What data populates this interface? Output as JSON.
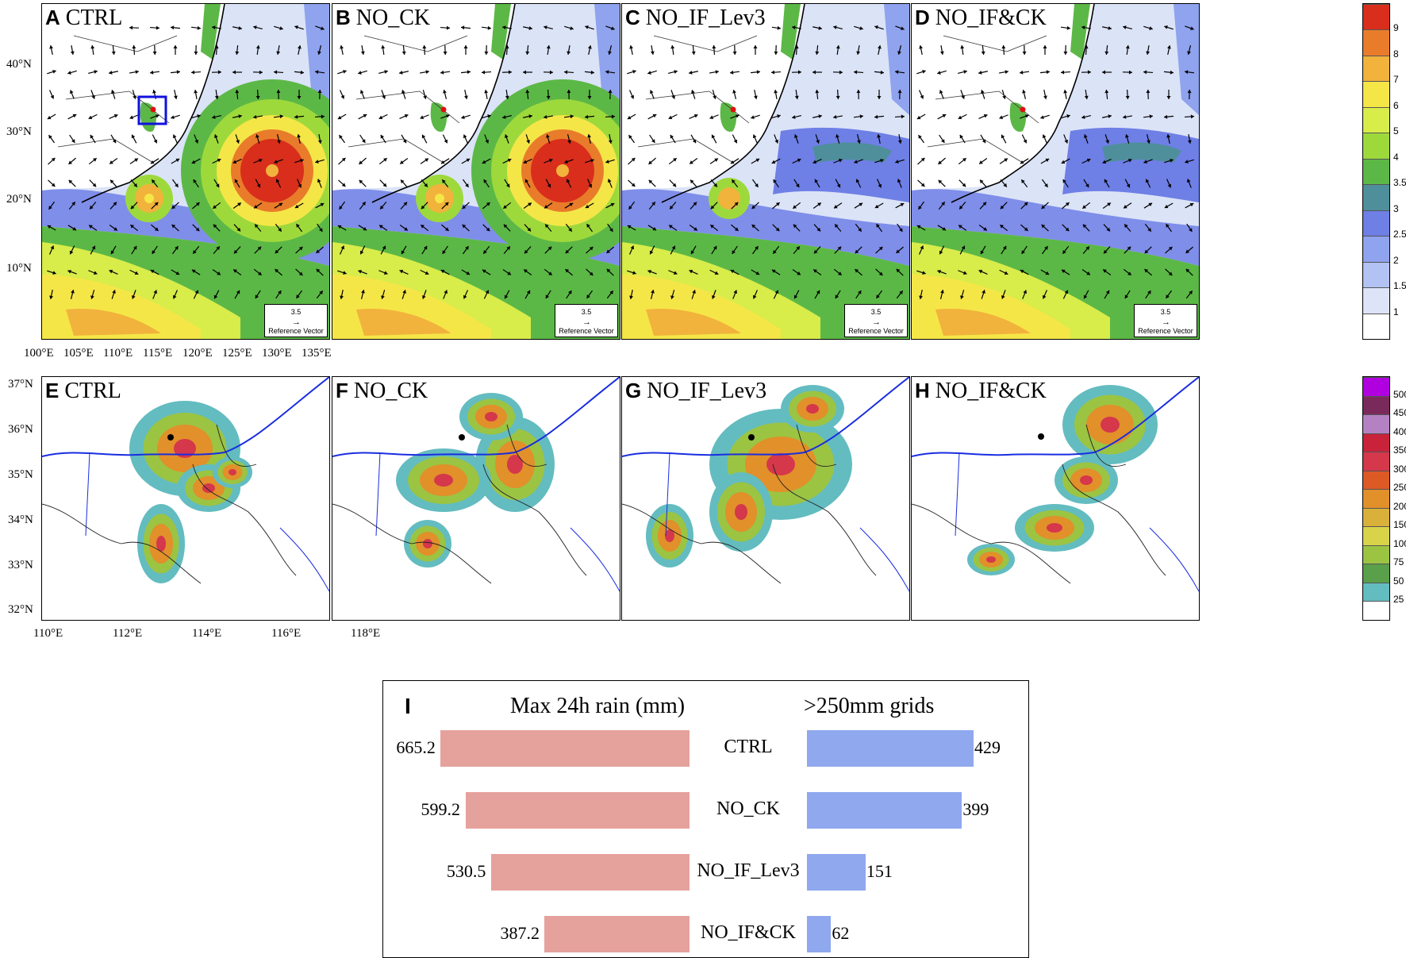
{
  "top_row": {
    "panels": [
      {
        "letter": "A",
        "name": "CTRL",
        "show_box": true,
        "typhoons": true
      },
      {
        "letter": "B",
        "name": "NO_CK",
        "show_box": false,
        "typhoons": true
      },
      {
        "letter": "C",
        "name": "NO_IF_Lev3",
        "show_box": false,
        "typhoons": false
      },
      {
        "letter": "D",
        "name": "NO_IF&CK",
        "show_box": false,
        "typhoons": false
      }
    ],
    "lat_labels": [
      "40°N",
      "30°N",
      "20°N",
      "10°N"
    ],
    "lon_labels": [
      "100°E",
      "105°E",
      "110°E",
      "115°E",
      "120°E",
      "125°E",
      "130°E",
      "135°E"
    ],
    "ref_vector": {
      "value": "3.5",
      "label": "Reference Vector"
    },
    "colorbar": {
      "levels": [
        "1",
        "1.5",
        "2",
        "2.5",
        "3",
        "3.5",
        "4",
        "5",
        "6",
        "7",
        "8",
        "9"
      ],
      "colors": [
        "#ffffff",
        "#dde4f7",
        "#b2c2f2",
        "#8fa3ee",
        "#6e7fe6",
        "#4f8f9c",
        "#5cb846",
        "#9ed93c",
        "#d8ec4a",
        "#f5e648",
        "#f1b33c",
        "#e97c2a",
        "#d92e1c"
      ]
    }
  },
  "mid_row": {
    "panels": [
      {
        "letter": "E",
        "name": "CTRL"
      },
      {
        "letter": "F",
        "name": "NO_CK"
      },
      {
        "letter": "G",
        "name": "NO_IF_Lev3"
      },
      {
        "letter": "H",
        "name": "NO_IF&CK"
      }
    ],
    "lat_labels": [
      "37°N",
      "36°N",
      "35°N",
      "34°N",
      "33°N",
      "32°N"
    ],
    "lon_labels": [
      "110°E",
      "112°E",
      "114°E",
      "116°E",
      "118°E"
    ],
    "colorbar": {
      "levels": [
        "25",
        "50",
        "75",
        "100",
        "150",
        "200",
        "250",
        "300",
        "350",
        "400",
        "450",
        "500"
      ],
      "colors": [
        "#ffffff",
        "#63bcc0",
        "#5a9f4a",
        "#9bc443",
        "#d9d34a",
        "#d9b03a",
        "#e1902a",
        "#dd5a25",
        "#d5374b",
        "#c8233a",
        "#b482c2",
        "#7a2a5a",
        "#b000e0"
      ]
    }
  },
  "chart_data": {
    "type": "bar",
    "panel_letter": "I",
    "categories": [
      "CTRL",
      "NO_CK",
      "NO_IF_Lev3",
      "NO_IF&CK"
    ],
    "series": [
      {
        "name": "Max 24h rain (mm)",
        "values": [
          665.2,
          599.2,
          530.5,
          387.2
        ],
        "color": "#e5a19c"
      },
      {
        "name": ">250mm grids",
        "values": [
          429,
          399,
          151,
          62
        ],
        "color": "#8fa8ee"
      }
    ]
  }
}
